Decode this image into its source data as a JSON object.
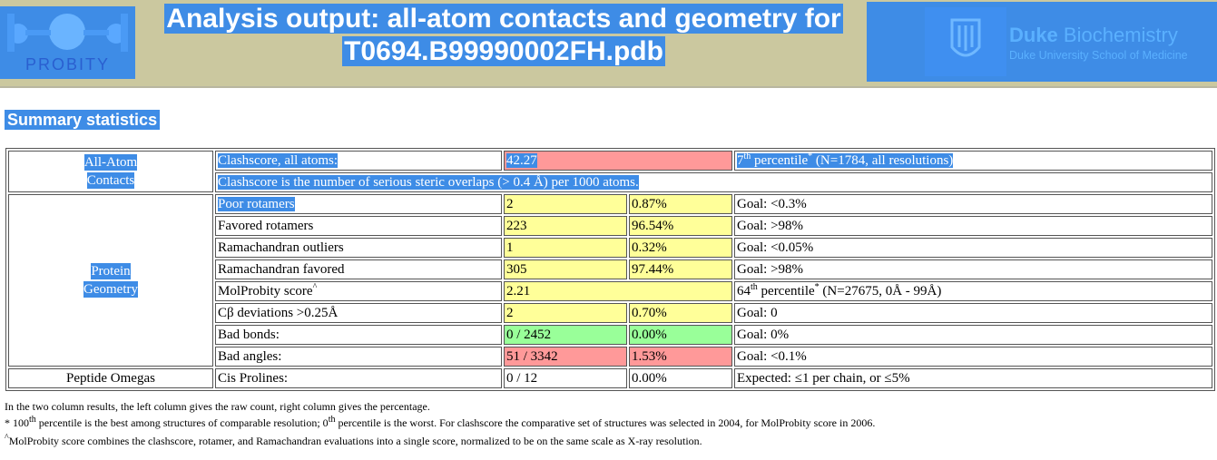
{
  "header": {
    "left_logo_text": "PROBITY",
    "title_line1": "Analysis output: all-atom contacts and geometry for",
    "title_line2": "T0694.B99990002FH.pdb",
    "right_logo_brand": "Duke",
    "right_logo_dept": "Biochemistry",
    "right_logo_school": "Duke University School of Medicine"
  },
  "summary": {
    "heading": "Summary statistics",
    "all_atom": {
      "category_line1": "All-Atom",
      "category_line2": "Contacts",
      "clashscore_label": "Clashscore, all atoms:",
      "clashscore_value": "42.27",
      "percentile_num": "7",
      "percentile_suffix": "th",
      "percentile_word": " percentile",
      "percentile_star": "*",
      "percentile_rest": " (N=1784, all resolutions)",
      "clashscore_note": "Clashscore is the number of serious steric overlaps (> 0.4 Å) per 1000 atoms."
    },
    "protein_geometry": {
      "category_line1": "Protein",
      "category_line2": "Geometry",
      "rows": [
        {
          "label": "Poor rotamers",
          "count": "2",
          "pct": "0.87%",
          "goal": "Goal: <0.3%"
        },
        {
          "label": "Favored rotamers",
          "count": "223",
          "pct": "96.54%",
          "goal": "Goal: >98%"
        },
        {
          "label": "Ramachandran outliers",
          "count": "1",
          "pct": "0.32%",
          "goal": "Goal: <0.05%"
        },
        {
          "label": "Ramachandran favored",
          "count": "305",
          "pct": "97.44%",
          "goal": "Goal: >98%"
        }
      ],
      "molprobity": {
        "label": "MolProbity score",
        "caret": "^",
        "value": "2.21",
        "percentile_num": "64",
        "percentile_suffix": "th",
        "percentile_word": " percentile",
        "percentile_star": "*",
        "percentile_rest": " (N=27675, 0Å - 99Å)"
      },
      "rows2": [
        {
          "label": "Cβ deviations >0.25Å",
          "count": "2",
          "pct": "0.70%",
          "goal": "Goal: 0"
        },
        {
          "label": "Bad bonds:",
          "count": "0 / 2452",
          "pct": "0.00%",
          "goal": "Goal: 0%"
        },
        {
          "label": "Bad angles:",
          "count": "51 / 3342",
          "pct": "1.53%",
          "goal": "Goal: <0.1%"
        }
      ]
    },
    "peptide": {
      "category": "Peptide Omegas",
      "label": "Cis Prolines:",
      "count": "0 / 12",
      "pct": "0.00%",
      "goal": "Expected: ≤1 per chain, or ≤5%"
    },
    "colors": {
      "yellow": "#ffff99",
      "red": "#ff9999",
      "green": "#99ff99",
      "selection": "#3e8ce6"
    }
  },
  "footnotes": {
    "line1": "In the two column results, the left column gives the raw count, right column gives the percentage.",
    "line2_star": "* 100",
    "line2_th1": "th",
    "line2_mid": " percentile is the best among structures of comparable resolution; 0",
    "line2_th2": "th",
    "line2_end": " percentile is the worst. For clashscore the comparative set of structures was selected in 2004, for MolProbity score in 2006.",
    "line3_caret": "^",
    "line3": "MolProbity score combines the clashscore, rotamer, and Ramachandran evaluations into a single score, normalized to be on the same scale as X-ray resolution."
  }
}
